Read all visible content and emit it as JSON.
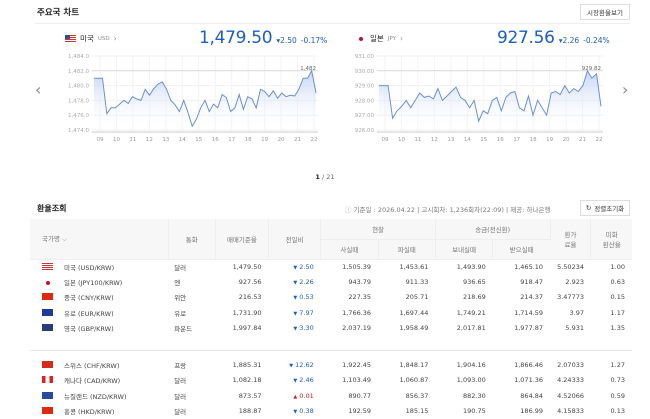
{
  "header": {
    "title": "주요국 차트",
    "market_rate_button": "시장환율보기"
  },
  "charts": {
    "usd": {
      "country": "미국",
      "code": "USD",
      "price": "1,479.50",
      "change": "2.50",
      "change_pct": "-0.17%",
      "direction": "down",
      "ref_label": "1,482"
    },
    "jpy": {
      "country": "일본",
      "code": "JPY",
      "price": "927.56",
      "change": "2.26",
      "change_pct": "-0.24%",
      "direction": "down",
      "ref_label": "929.82"
    },
    "pagination": {
      "current": "1",
      "total": "/ 21"
    }
  },
  "chart_data": [
    {
      "type": "area",
      "series": [
        {
          "values": [
            1481,
            1481,
            1481,
            1476.2,
            1477,
            1477,
            1477.5,
            1478,
            1477.6,
            1478.5,
            1478.2,
            1478,
            1479.5,
            1478.7,
            1479.6,
            1480.2,
            1480.5,
            1479.5,
            1478,
            1477.4,
            1476.5,
            1478,
            1476.4,
            1474.5,
            1475.5,
            1477,
            1478,
            1476.5,
            1477.5,
            1477,
            1478.8,
            1478.4,
            1476.5,
            1477,
            1478.8,
            1476.8,
            1478.5,
            1478.2,
            1477,
            1479.5,
            1479.2,
            1478.5,
            1479.3,
            1478.3,
            1479,
            1478.5,
            1478.7,
            1478.6,
            1479.5,
            1481,
            1481,
            1482,
            1479
          ]
        }
      ],
      "x_ticks": [
        "09",
        "10",
        "11",
        "12",
        "13",
        "14",
        "15",
        "16",
        "17",
        "18",
        "19",
        "20",
        "21",
        "22"
      ],
      "y_ticks": [
        "1,474.0",
        "1,476.0",
        "1,478.0",
        "1,480.0",
        "1,482.0",
        "1,484.0"
      ],
      "ylim": [
        1474,
        1484
      ],
      "grid": true
    },
    {
      "type": "area",
      "series": [
        {
          "values": [
            929,
            929,
            929,
            926.8,
            927.3,
            927.6,
            928,
            927.5,
            928,
            928.5,
            928.2,
            928.3,
            928.1,
            928.8,
            928,
            928.3,
            928.6,
            928.9,
            928.2,
            928,
            927.5,
            928,
            926.6,
            927.3,
            927.1,
            928,
            928.2,
            927.3,
            928.2,
            928.5,
            928.6,
            927.5,
            927.3,
            928.3,
            927,
            928,
            927.5,
            927,
            928.5,
            928.6,
            928.4,
            929,
            928.5,
            928.8,
            928.6,
            929,
            930,
            929.5,
            929.8,
            927.6
          ]
        }
      ],
      "x_ticks": [
        "09",
        "10",
        "11",
        "12",
        "13",
        "14",
        "15",
        "16",
        "17",
        "18",
        "19",
        "20",
        "21",
        "22"
      ],
      "y_ticks": [
        "926.00",
        "927.00",
        "928.00",
        "929.00",
        "930.00",
        "931.00"
      ],
      "ylim": [
        926,
        931
      ],
      "grid": true
    }
  ],
  "rates": {
    "title": "환율조회",
    "base_date": "기준일 : 2026.04.22",
    "notice": "고시회차: 1,236회차(22:09)",
    "provider": "제공: 하나은행",
    "reset_button": "정렬초기화",
    "headers": {
      "country": "국가명 ⌵",
      "currency": "통화",
      "base": "매매기준율",
      "diff": "전일비",
      "cash": "현찰",
      "cash_buy": "사실때",
      "cash_sell": "파실때",
      "wire": "송금(전신환)",
      "wire_send": "보내실때",
      "wire_recv": "받으실때",
      "fee": "환가\n료율",
      "usd_ratio": "미화\n환산율"
    },
    "rows": [
      {
        "flag": "us",
        "name": "미국 (USD/KRW)",
        "cur": "달러",
        "base": "1,479.50",
        "dir": "down",
        "diff": "2.50",
        "cb": "1,505.39",
        "cs": "1,453.61",
        "ws": "1,493.90",
        "wr": "1,465.10",
        "fee": "5.50234",
        "ratio": "1.00"
      },
      {
        "flag": "jp",
        "name": "일본 (JPY100/KRW)",
        "cur": "엔",
        "base": "927.56",
        "dir": "down",
        "diff": "2.26",
        "cb": "943.79",
        "cs": "911.33",
        "ws": "936.65",
        "wr": "918.47",
        "fee": "2.923",
        "ratio": "0.63"
      },
      {
        "flag": "cn",
        "name": "중국 (CNY/KRW)",
        "cur": "위안",
        "base": "216.53",
        "dir": "down",
        "diff": "0.53",
        "cb": "227.35",
        "cs": "205.71",
        "ws": "218.69",
        "wr": "214.37",
        "fee": "3.47773",
        "ratio": "0.15"
      },
      {
        "flag": "eu",
        "name": "유로 (EUR/KRW)",
        "cur": "유로",
        "base": "1,731.90",
        "dir": "down",
        "diff": "7.97",
        "cb": "1,766.36",
        "cs": "1,697.44",
        "ws": "1,749.21",
        "wr": "1,714.59",
        "fee": "3.97",
        "ratio": "1.17"
      },
      {
        "flag": "gb",
        "name": "영국 (GBP/KRW)",
        "cur": "파운드",
        "base": "1,997.84",
        "dir": "down",
        "diff": "3.30",
        "cb": "2,037.19",
        "cs": "1,958.49",
        "ws": "2,017.81",
        "wr": "1,977.87",
        "fee": "5.931",
        "ratio": "1.35"
      },
      {
        "flag": "ch",
        "name": "스위스 (CHF/KRW)",
        "cur": "프랑",
        "base": "1,885.31",
        "dir": "down",
        "diff": "12.62",
        "cb": "1,922.45",
        "cs": "1,848.17",
        "ws": "1,904.16",
        "wr": "1,866.46",
        "fee": "2.07033",
        "ratio": "1.27"
      },
      {
        "flag": "ca",
        "name": "캐나다 (CAD/KRW)",
        "cur": "달러",
        "base": "1,082.18",
        "dir": "down",
        "diff": "2.46",
        "cb": "1,103.49",
        "cs": "1,060.87",
        "ws": "1,093.00",
        "wr": "1,071.36",
        "fee": "4.24333",
        "ratio": "0.73"
      },
      {
        "flag": "nz",
        "name": "뉴질랜드 (NZD/KRW)",
        "cur": "달러",
        "base": "873.57",
        "dir": "up",
        "diff": "0.01",
        "cb": "890.77",
        "cs": "856.37",
        "ws": "882.30",
        "wr": "864.84",
        "fee": "4.52066",
        "ratio": "0.59"
      },
      {
        "flag": "hk",
        "name": "홍콩 (HKD/KRW)",
        "cur": "달러",
        "base": "188.87",
        "dir": "down",
        "diff": "0.38",
        "cb": "192.59",
        "cs": "185.15",
        "ws": "190.75",
        "wr": "186.99",
        "fee": "4.15833",
        "ratio": "0.13"
      }
    ]
  },
  "colors": {
    "accent": "#1a5ec8",
    "down": "#1a5ec8",
    "up": "#d02020",
    "line": "#6b8fd6"
  }
}
